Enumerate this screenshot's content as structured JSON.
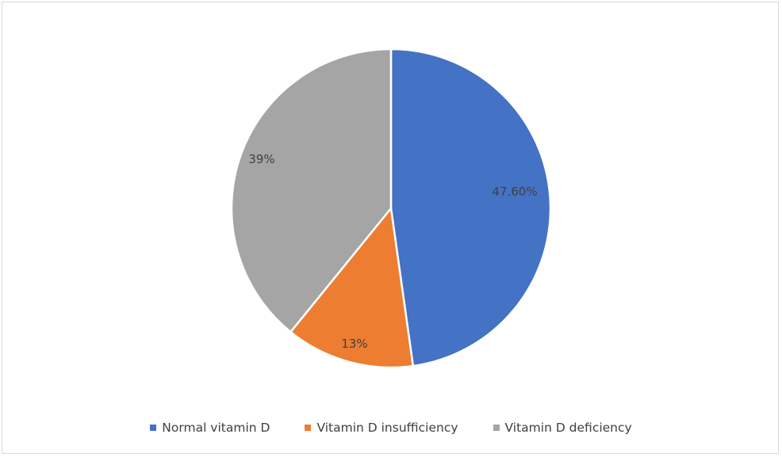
{
  "chart_data": {
    "type": "pie",
    "title": "",
    "categories": [
      "Normal vitamin D",
      "Vitamin D insufficiency",
      "Vitamin D deficiency"
    ],
    "values": [
      47.6,
      13,
      39
    ],
    "labels": [
      "47.60%",
      "13%",
      "39%"
    ],
    "colors": [
      "#4472c4",
      "#ed7d31",
      "#a5a5a5"
    ],
    "legend_position": "bottom",
    "start_angle": "12 o'clock, clockwise"
  },
  "legend": [
    {
      "label": "Normal vitamin D",
      "color": "#4472c4"
    },
    {
      "label": "Vitamin D insufficiency",
      "color": "#ed7d31"
    },
    {
      "label": "Vitamin D deficiency",
      "color": "#a5a5a5"
    }
  ]
}
